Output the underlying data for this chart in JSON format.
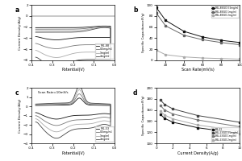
{
  "panel_a": {
    "title": "a",
    "xlabel": "Potential(V)",
    "ylabel": "Current Density(A/g)",
    "xlim": [
      -0.4,
      0.0
    ],
    "ylim": [
      -8,
      2
    ],
    "yticks": [
      -8,
      -6,
      -4,
      -2,
      0,
      2
    ],
    "xticks": [
      -0.4,
      -0.3,
      -0.2,
      -0.1,
      0.0
    ],
    "legend": [
      "MIL-88",
      "0.5mg/ml",
      "1mg/ml",
      "2mg/ml"
    ],
    "colors": [
      "#111111",
      "#777777",
      "#aaaaaa",
      "#444444"
    ],
    "scales": [
      2.5,
      4.0,
      5.5,
      7.0
    ],
    "offsets": [
      -2.5,
      -3.0,
      -3.5,
      -4.0
    ]
  },
  "panel_b": {
    "title": "b",
    "xlabel": "Scan Rate(mV/s)",
    "ylabel": "Specific Capacitance(F/g)",
    "xlim": [
      10,
      100
    ],
    "ylim": [
      0,
      100
    ],
    "yticks": [
      0,
      20,
      40,
      60,
      80,
      100
    ],
    "xticks": [
      20,
      40,
      60,
      80,
      100
    ],
    "legend": [
      "MIL-88/GO 0.5mg/ml",
      "MIL-88/GO 1mg/ml",
      "MIL-88/GO 2mg/ml"
    ],
    "colors": [
      "#111111",
      "#666666",
      "#aaaaaa"
    ],
    "scan_rates": [
      10,
      20,
      40,
      60,
      80,
      100
    ],
    "series": [
      [
        95,
        72,
        52,
        42,
        36,
        32
      ],
      [
        85,
        62,
        45,
        37,
        32,
        28
      ],
      [
        18,
        10,
        6,
        4,
        3,
        2
      ]
    ],
    "markers": [
      "s",
      "s",
      "o"
    ]
  },
  "panel_c": {
    "title": "c",
    "xlabel": "Potential(V)",
    "ylabel": "Current Density(A/g)",
    "xlim": [
      -0.4,
      0.0
    ],
    "ylim": [
      -4,
      2
    ],
    "yticks": [
      -4,
      -3,
      -2,
      -1,
      0,
      1,
      2
    ],
    "xticks": [
      -0.4,
      -0.3,
      -0.2,
      -0.1,
      0.0
    ],
    "annotation": "Scan Rate=10mV/s",
    "legend": [
      "MIL-53",
      "0.5mg/ml",
      "1mg/ml",
      "2mg/ml"
    ],
    "colors": [
      "#111111",
      "#777777",
      "#aaaaaa",
      "#444444"
    ],
    "peak_scales": [
      1.0,
      1.5,
      2.0,
      2.5
    ],
    "neg_scales": [
      1.2,
      1.8,
      2.4,
      3.0
    ]
  },
  "panel_d": {
    "title": "d",
    "xlabel": "Current Density(A/g)",
    "ylabel": "Specific Capacitance(F/g)",
    "xlim": [
      0,
      10
    ],
    "ylim": [
      100,
      200
    ],
    "yticks": [
      100,
      120,
      140,
      160,
      180,
      200
    ],
    "xticks": [
      0,
      2,
      4,
      6,
      8,
      10
    ],
    "legend": [
      "MIL-53",
      "MIL-53/GO 0.5mg/ml",
      "MIL-53/GO 1mg/ml",
      "MIL-53/GO 2mg/ml"
    ],
    "colors": [
      "#111111",
      "#444444",
      "#777777",
      "#aaaaaa"
    ],
    "current_densities": [
      0.5,
      1,
      2,
      5,
      10
    ],
    "series": [
      [
        152,
        145,
        138,
        128,
        118
      ],
      [
        178,
        170,
        162,
        150,
        138
      ],
      [
        168,
        160,
        153,
        142,
        130
      ],
      [
        158,
        151,
        144,
        133,
        122
      ]
    ],
    "markers": [
      "s",
      "s",
      "s",
      "s"
    ]
  }
}
